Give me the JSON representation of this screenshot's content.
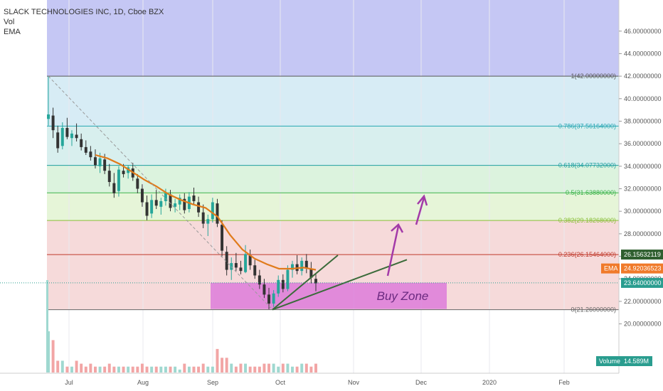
{
  "legend": {
    "title": "SLACK TECHNOLOGIES INC, 1D, Cboe BZX",
    "vol": "Vol",
    "ema": "EMA"
  },
  "colors": {
    "up": "#26a69a",
    "down": "#333333",
    "ema": "#e07b1b",
    "trend": "#3a6b3a",
    "arrow": "#a33aa8",
    "buy_zone": "#d96fd9"
  },
  "chart_data": {
    "type": "candlestick",
    "title": "SLACK TECHNOLOGIES INC, 1D, Cboe BZX",
    "ylim": [
      18.9,
      47.5
    ],
    "y_ticks": [
      "20.00000000",
      "22.00000000",
      "24.00000000",
      "26.00000000",
      "28.00000000",
      "30.00000000",
      "32.00000000",
      "34.00000000",
      "36.00000000",
      "38.00000000",
      "40.00000000",
      "42.00000000",
      "44.00000000",
      "46.00000000"
    ],
    "x_labels": [
      "Jul",
      "Aug",
      "Sep",
      "Oct",
      "Nov",
      "Dec",
      "2020",
      "Feb"
    ],
    "fib_levels": [
      {
        "ratio": 1,
        "value": 42.0,
        "label": "1(42.00000000)",
        "color": "#555555",
        "fill": "#e6e6e6"
      },
      {
        "ratio": 0.786,
        "value": 37.56164,
        "label": "0.786(37.56164000)",
        "color": "#26a6b3",
        "fill": "#d7ecf5"
      },
      {
        "ratio": 0.618,
        "value": 34.07732,
        "label": "0.618(34.07732000)",
        "color": "#1f9f9f",
        "fill": "#d8efee"
      },
      {
        "ratio": 0.5,
        "value": 31.6388,
        "label": "0.5(31.63880000)",
        "color": "#3cb44a",
        "fill": "#dcf3de"
      },
      {
        "ratio": 0.382,
        "value": 29.18268,
        "label": "0.382(29.18268000)",
        "color": "#8bbf3a",
        "fill": "#e6f5d8"
      },
      {
        "ratio": 0.236,
        "value": 26.15464,
        "label": "0.236(26.15464000)",
        "color": "#c0392b",
        "fill": "#f6dada"
      },
      {
        "ratio": 0,
        "value": 21.26,
        "label": "0(21.26000000)",
        "color": "#666666",
        "fill": ""
      }
    ],
    "top_zone_color": "#c5c7f4",
    "price_tags": [
      {
        "label": "26.15632119",
        "value": 26.156,
        "color": "#2f5f2f"
      },
      {
        "label": "EMA",
        "value": 24.92,
        "color": "#f07a2a"
      },
      {
        "label": "24.92036523",
        "value": 24.92,
        "color": "#f07a2a"
      },
      {
        "label": "23.64000000",
        "value": 23.64,
        "color": "#2a9d8f"
      }
    ],
    "volume_tag": "Volume",
    "volume_value": "14.589M",
    "buy_zone": {
      "label": "Buy Zone",
      "from": 21.32,
      "to": 23.65
    },
    "ema": [
      35.0,
      34.7,
      34.2,
      33.5,
      32.8,
      32.2,
      31.5,
      31.0,
      30.6,
      30.3,
      29.5,
      27.9,
      26.6,
      25.8,
      25.3,
      24.9,
      24.9,
      25.0,
      24.8
    ],
    "candles": [
      {
        "o": 38.2,
        "h": 42.0,
        "l": 37.6,
        "c": 38.6
      },
      {
        "o": 38.5,
        "h": 39.2,
        "l": 36.5,
        "c": 37.2
      },
      {
        "o": 37.0,
        "h": 37.6,
        "l": 35.2,
        "c": 35.6
      },
      {
        "o": 35.8,
        "h": 37.9,
        "l": 35.5,
        "c": 37.4
      },
      {
        "o": 37.4,
        "h": 38.3,
        "l": 36.4,
        "c": 36.6
      },
      {
        "o": 36.5,
        "h": 37.2,
        "l": 35.8,
        "c": 36.9
      },
      {
        "o": 36.8,
        "h": 37.8,
        "l": 36.2,
        "c": 36.5
      },
      {
        "o": 36.4,
        "h": 36.9,
        "l": 35.4,
        "c": 35.7
      },
      {
        "o": 35.7,
        "h": 36.3,
        "l": 35.0,
        "c": 35.2
      },
      {
        "o": 35.3,
        "h": 35.8,
        "l": 34.5,
        "c": 34.8
      },
      {
        "o": 34.8,
        "h": 35.5,
        "l": 33.8,
        "c": 34.1
      },
      {
        "o": 34.0,
        "h": 35.2,
        "l": 33.4,
        "c": 34.7
      },
      {
        "o": 34.6,
        "h": 35.1,
        "l": 33.3,
        "c": 33.6
      },
      {
        "o": 33.6,
        "h": 34.2,
        "l": 32.2,
        "c": 32.6
      },
      {
        "o": 32.5,
        "h": 33.4,
        "l": 31.2,
        "c": 31.6
      },
      {
        "o": 31.8,
        "h": 34.0,
        "l": 31.3,
        "c": 33.7
      },
      {
        "o": 33.6,
        "h": 34.2,
        "l": 33.0,
        "c": 33.3
      },
      {
        "o": 33.4,
        "h": 34.1,
        "l": 32.9,
        "c": 33.9
      },
      {
        "o": 33.8,
        "h": 34.3,
        "l": 32.7,
        "c": 33.0
      },
      {
        "o": 32.9,
        "h": 33.3,
        "l": 31.6,
        "c": 32.0
      },
      {
        "o": 32.0,
        "h": 32.4,
        "l": 30.4,
        "c": 30.8
      },
      {
        "o": 30.8,
        "h": 31.4,
        "l": 29.2,
        "c": 29.6
      },
      {
        "o": 29.8,
        "h": 31.5,
        "l": 29.4,
        "c": 31.0
      },
      {
        "o": 31.0,
        "h": 31.9,
        "l": 30.2,
        "c": 30.5
      },
      {
        "o": 30.4,
        "h": 31.2,
        "l": 29.7,
        "c": 30.9
      },
      {
        "o": 30.9,
        "h": 32.0,
        "l": 30.5,
        "c": 31.6
      },
      {
        "o": 31.5,
        "h": 31.9,
        "l": 30.0,
        "c": 30.3
      },
      {
        "o": 30.4,
        "h": 31.1,
        "l": 29.9,
        "c": 30.7
      },
      {
        "o": 30.6,
        "h": 31.5,
        "l": 30.1,
        "c": 31.2
      },
      {
        "o": 31.1,
        "h": 31.6,
        "l": 29.8,
        "c": 30.1
      },
      {
        "o": 30.2,
        "h": 31.7,
        "l": 29.9,
        "c": 31.3
      },
      {
        "o": 31.4,
        "h": 32.1,
        "l": 30.6,
        "c": 30.9
      },
      {
        "o": 30.8,
        "h": 31.3,
        "l": 29.5,
        "c": 29.9
      },
      {
        "o": 29.9,
        "h": 30.6,
        "l": 28.5,
        "c": 28.9
      },
      {
        "o": 28.9,
        "h": 29.7,
        "l": 27.8,
        "c": 29.3
      },
      {
        "o": 29.3,
        "h": 31.2,
        "l": 29.0,
        "c": 30.8
      },
      {
        "o": 30.7,
        "h": 31.1,
        "l": 28.6,
        "c": 28.9
      },
      {
        "o": 28.8,
        "h": 29.2,
        "l": 26.0,
        "c": 26.5
      },
      {
        "o": 26.4,
        "h": 26.9,
        "l": 24.3,
        "c": 24.8
      },
      {
        "o": 24.8,
        "h": 25.9,
        "l": 23.9,
        "c": 25.4
      },
      {
        "o": 25.4,
        "h": 26.3,
        "l": 24.7,
        "c": 25.0
      },
      {
        "o": 25.0,
        "h": 25.6,
        "l": 24.4,
        "c": 24.7
      },
      {
        "o": 24.6,
        "h": 27.0,
        "l": 24.5,
        "c": 26.2
      },
      {
        "o": 26.1,
        "h": 26.6,
        "l": 24.8,
        "c": 25.2
      },
      {
        "o": 25.2,
        "h": 25.7,
        "l": 24.0,
        "c": 24.3
      },
      {
        "o": 24.3,
        "h": 24.8,
        "l": 23.1,
        "c": 23.5
      },
      {
        "o": 23.5,
        "h": 24.0,
        "l": 22.3,
        "c": 22.6
      },
      {
        "o": 22.6,
        "h": 23.2,
        "l": 21.3,
        "c": 21.8
      },
      {
        "o": 21.8,
        "h": 23.0,
        "l": 21.5,
        "c": 22.7
      },
      {
        "o": 22.7,
        "h": 24.3,
        "l": 22.4,
        "c": 23.9
      },
      {
        "o": 23.9,
        "h": 24.4,
        "l": 22.8,
        "c": 23.1
      },
      {
        "o": 23.1,
        "h": 25.2,
        "l": 22.9,
        "c": 24.8
      },
      {
        "o": 24.8,
        "h": 25.6,
        "l": 24.1,
        "c": 25.3
      },
      {
        "o": 25.3,
        "h": 26.1,
        "l": 24.4,
        "c": 24.7
      },
      {
        "o": 24.7,
        "h": 25.9,
        "l": 24.3,
        "c": 25.6
      },
      {
        "o": 25.6,
        "h": 26.2,
        "l": 24.5,
        "c": 24.9
      },
      {
        "o": 24.9,
        "h": 25.5,
        "l": 23.6,
        "c": 24.1
      },
      {
        "o": 24.0,
        "h": 24.4,
        "l": 22.9,
        "c": 23.6
      }
    ],
    "volume": [
      14,
      11,
      4,
      4,
      2,
      2,
      4,
      3,
      2,
      3,
      2,
      2,
      2,
      3,
      2,
      2,
      2,
      2,
      2,
      2,
      3,
      2,
      2,
      2,
      2,
      2,
      2,
      2,
      1,
      3,
      2,
      2,
      2,
      3,
      2,
      2,
      8,
      5,
      5,
      3,
      2,
      3,
      3,
      2,
      2,
      2,
      3,
      3,
      3,
      2,
      3,
      3,
      2,
      2,
      3,
      3,
      2,
      3
    ]
  }
}
